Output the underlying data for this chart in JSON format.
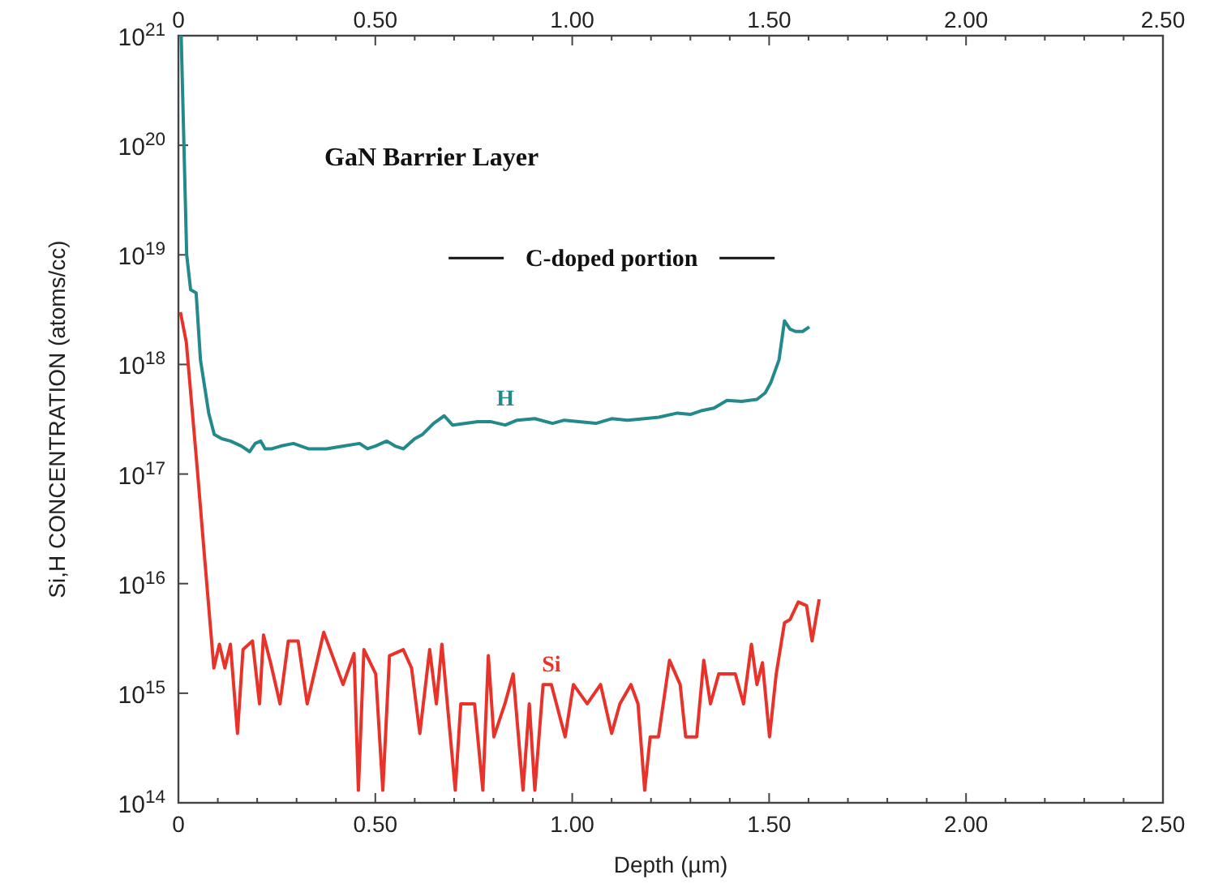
{
  "chart_data": {
    "type": "line",
    "xlabel": "Depth (µm)",
    "ylabel": "Si,H CONCENTRATION (atoms/cc)",
    "log": "y",
    "grid": false,
    "marker": "none",
    "line_style": "solid",
    "annotations": [
      "GaN Barrier Layer",
      "C-doped portion"
    ],
    "xlim": [
      0,
      2.5
    ],
    "x2lim": [
      0,
      2.5
    ],
    "ylim": [
      100000000000000.0,
      1e+21
    ],
    "xticks": [
      0,
      {
        "value": 0.1,
        "label": null
      },
      {
        "value": 0.2,
        "label": null
      },
      {
        "value": 0.3,
        "label": null
      },
      {
        "value": 0.4,
        "label": null
      },
      {
        "value": 0.5,
        "label": "0.50"
      },
      {
        "value": 0.6,
        "label": null
      },
      {
        "value": 0.7,
        "label": null
      },
      {
        "value": 0.8,
        "label": null
      },
      {
        "value": 0.9,
        "label": null
      },
      {
        "value": 1,
        "label": "1.00"
      },
      {
        "value": 1.1,
        "label": null
      },
      {
        "value": 1.2,
        "label": null
      },
      {
        "value": 1.3,
        "label": null
      },
      {
        "value": 1.4,
        "label": null
      },
      {
        "value": 1.5,
        "label": "1.50"
      },
      {
        "value": 1.6,
        "label": null
      },
      {
        "value": 1.7,
        "label": null
      },
      {
        "value": 1.8,
        "label": null
      },
      {
        "value": 1.9,
        "label": null
      },
      {
        "value": 2,
        "label": "2.00"
      },
      {
        "value": 2.1,
        "label": null
      },
      {
        "value": 2.2,
        "label": null
      },
      {
        "value": 2.3,
        "label": null
      },
      {
        "value": 2.4,
        "label": null
      },
      {
        "value": 2.5,
        "label": "2.50"
      }
    ],
    "x2ticks": [
      0,
      {
        "value": 0.1,
        "label": null
      },
      {
        "value": 0.2,
        "label": null
      },
      {
        "value": 0.3,
        "label": null
      },
      {
        "value": 0.4,
        "label": null
      },
      {
        "value": 0.5,
        "label": "0.50"
      },
      {
        "value": 0.6,
        "label": null
      },
      {
        "value": 0.7,
        "label": null
      },
      {
        "value": 0.8,
        "label": null
      },
      {
        "value": 0.9,
        "label": null
      },
      {
        "value": 1,
        "label": "1.00"
      },
      {
        "value": 1.1,
        "label": null
      },
      {
        "value": 1.2,
        "label": null
      },
      {
        "value": 1.3,
        "label": null
      },
      {
        "value": 1.4,
        "label": null
      },
      {
        "value": 1.5,
        "label": "1.50"
      },
      {
        "value": 1.6,
        "label": null
      },
      {
        "value": 1.7,
        "label": null
      },
      {
        "value": 1.8,
        "label": null
      },
      {
        "value": 1.9,
        "label": null
      },
      {
        "value": 2,
        "label": "2.00"
      },
      {
        "value": 2.1,
        "label": null
      },
      {
        "value": 2.2,
        "label": null
      },
      {
        "value": 2.3,
        "label": null
      },
      {
        "value": 2.4,
        "label": null
      },
      {
        "value": 2.5,
        "label": "2.50"
      }
    ],
    "yticks": [
      {
        "value": 100000000000000.0,
        "label": "10$^{14}$"
      },
      {
        "value": 1000000000000000.0,
        "label": "10$^{15}$"
      },
      {
        "value": 1e+16,
        "label": "10$^{16}$"
      },
      {
        "value": 1e+17,
        "label": "10$^{17}$"
      },
      {
        "value": 1e+18,
        "label": "10$^{18}$"
      },
      {
        "value": 1e+19,
        "label": "10$^{19}$"
      },
      {
        "value": 1e+20,
        "label": "10$^{20}$"
      },
      {
        "value": 1e+21,
        "label": "10$^{21}$"
      }
    ],
    "series": [
      {
        "name": "H",
        "color": "#23898a",
        "x": [
          0.007,
          0.014,
          0.021,
          0.031,
          0.045,
          0.056,
          0.077,
          0.091,
          0.11,
          0.132,
          0.16,
          0.181,
          0.195,
          0.209,
          0.22,
          0.237,
          0.26,
          0.292,
          0.33,
          0.376,
          0.42,
          0.46,
          0.48,
          0.5,
          0.529,
          0.55,
          0.571,
          0.6,
          0.62,
          0.648,
          0.675,
          0.696,
          0.73,
          0.76,
          0.794,
          0.83,
          0.86,
          0.905,
          0.95,
          0.98,
          1.017,
          1.06,
          1.1,
          1.14,
          1.184,
          1.22,
          1.267,
          1.3,
          1.33,
          1.36,
          1.393,
          1.43,
          1.469,
          1.49,
          1.504,
          1.525,
          1.539,
          1.553,
          1.567,
          1.585,
          1.602
        ],
        "values": [
          1e+21,
          1e+20,
          1e+19,
          4.8e+18,
          4.5e+18,
          1.1e+18,
          3.6e+17,
          2.3e+17,
          2.1e+17,
          2e+17,
          1.8e+17,
          1.6e+17,
          1.9e+17,
          2e+17,
          1.7e+17,
          1.7e+17,
          1.8e+17,
          1.9e+17,
          1.7e+17,
          1.7e+17,
          1.8e+17,
          1.9e+17,
          1.7e+17,
          1.8e+17,
          2e+17,
          1.8e+17,
          1.7e+17,
          2.1e+17,
          2.3e+17,
          2.9e+17,
          3.4e+17,
          2.8e+17,
          2.9e+17,
          3e+17,
          3e+17,
          2.8e+17,
          3.1e+17,
          3.2e+17,
          2.9e+17,
          3.1e+17,
          3e+17,
          2.9e+17,
          3.2e+17,
          3.1e+17,
          3.2e+17,
          3.3e+17,
          3.6e+17,
          3.5e+17,
          3.8e+17,
          4e+17,
          4.7e+17,
          4.6e+17,
          4.8e+17,
          5.5e+17,
          6.8e+17,
          1.1e+18,
          2.5e+18,
          2.1e+18,
          2e+18,
          2e+18,
          2.2e+18
        ]
      },
      {
        "name": "Si",
        "color": "#e8322a",
        "x": [
          0.005,
          0.02,
          0.049,
          0.065,
          0.09,
          0.104,
          0.118,
          0.132,
          0.15,
          0.164,
          0.188,
          0.206,
          0.216,
          0.234,
          0.258,
          0.279,
          0.304,
          0.327,
          0.369,
          0.418,
          0.446,
          0.457,
          0.471,
          0.501,
          0.519,
          0.536,
          0.571,
          0.592,
          0.613,
          0.638,
          0.655,
          0.669,
          0.703,
          0.717,
          0.752,
          0.773,
          0.787,
          0.801,
          0.829,
          0.85,
          0.875,
          0.891,
          0.905,
          0.926,
          0.947,
          0.982,
          1.003,
          1.038,
          1.072,
          1.1,
          1.121,
          1.149,
          1.167,
          1.184,
          1.198,
          1.219,
          1.247,
          1.274,
          1.288,
          1.316,
          1.334,
          1.351,
          1.372,
          1.393,
          1.414,
          1.435,
          1.455,
          1.469,
          1.483,
          1.501,
          1.518,
          1.539,
          1.553,
          1.574,
          1.595,
          1.609,
          1.627
        ],
        "values": [
          3e+18,
          1.6e+18,
          1e+17,
          2e+16,
          1700000000000000.0,
          2800000000000000.0,
          1700000000000000.0,
          2800000000000000.0,
          430000000000000.0,
          2500000000000000.0,
          3000000000000000.0,
          800000000000000.0,
          3400000000000000.0,
          1900000000000000.0,
          800000000000000.0,
          3000000000000000.0,
          3000000000000000.0,
          800000000000000.0,
          3600000000000000.0,
          1200000000000000.0,
          2300000000000000.0,
          130000000000000.0,
          2500000000000000.0,
          1500000000000000.0,
          130000000000000.0,
          2200000000000000.0,
          2500000000000000.0,
          1700000000000000.0,
          430000000000000.0,
          2500000000000000.0,
          800000000000000.0,
          2800000000000000.0,
          130000000000000.0,
          800000000000000.0,
          800000000000000.0,
          130000000000000.0,
          2200000000000000.0,
          400000000000000.0,
          800000000000000.0,
          1500000000000000.0,
          130000000000000.0,
          800000000000000.0,
          130000000000000.0,
          1200000000000000.0,
          1200000000000000.0,
          400000000000000.0,
          1200000000000000.0,
          800000000000000.0,
          1200000000000000.0,
          430000000000000.0,
          800000000000000.0,
          1200000000000000.0,
          800000000000000.0,
          130000000000000.0,
          400000000000000.0,
          400000000000000.0,
          2000000000000000.0,
          1200000000000000.0,
          400000000000000.0,
          400000000000000.0,
          2000000000000000.0,
          800000000000000.0,
          1500000000000000.0,
          1500000000000000.0,
          1500000000000000.0,
          800000000000000.0,
          2800000000000000.0,
          1200000000000000.0,
          1900000000000000.0,
          400000000000000.0,
          1500000000000000.0,
          4400000000000000.0,
          4700000000000000.0,
          6800000000000000.0,
          6300000000000000.0,
          3000000000000000.0,
          7200000000000000.0
        ]
      }
    ]
  }
}
